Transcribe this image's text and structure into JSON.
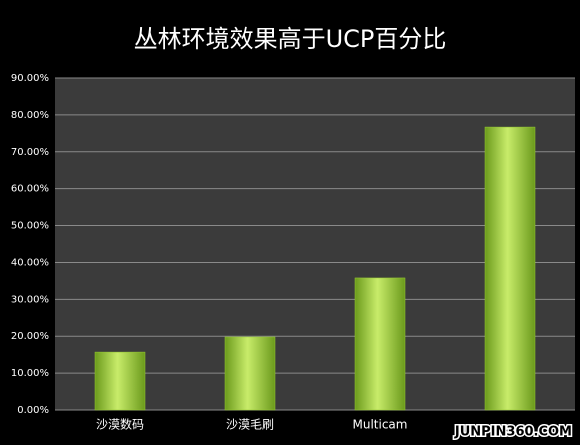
{
  "chart_data": {
    "type": "bar",
    "title": "丛林环境效果高于UCP百分比",
    "categories": [
      "沙漠数码",
      "沙漠毛刷",
      "Multicam",
      null
    ],
    "values": [
      15.7,
      19.8,
      35.8,
      76.7
    ],
    "color": "#9acd32",
    "ylim": [
      0,
      90
    ],
    "yticks": [
      {
        "value": 0,
        "label": "0.00%"
      },
      {
        "value": 10,
        "label": "10.00%"
      },
      {
        "value": 20,
        "label": "20.00%"
      },
      {
        "value": 30,
        "label": "30.00%"
      },
      {
        "value": 40,
        "label": "40.00%"
      },
      {
        "value": 50,
        "label": "50.00%"
      },
      {
        "value": 60,
        "label": "60.00%"
      },
      {
        "value": 70,
        "label": "70.00%"
      },
      {
        "value": 80,
        "label": "80.00%"
      },
      {
        "value": 90,
        "label": "90.00%"
      }
    ],
    "grid": true,
    "watermark": "JUNPIN360.COM"
  }
}
